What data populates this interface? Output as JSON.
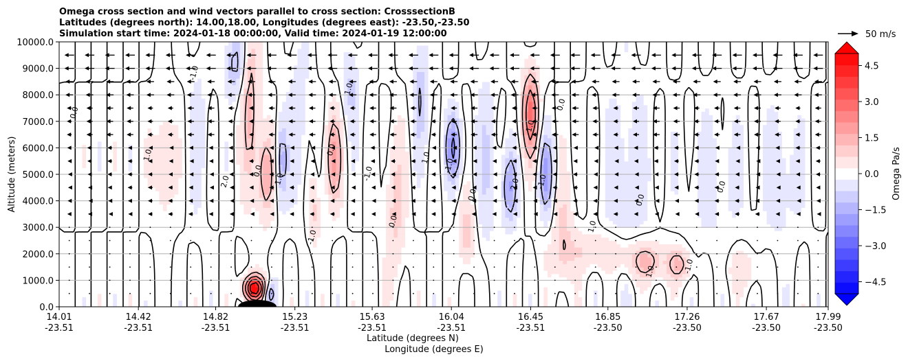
{
  "chart_data": {
    "type": "heatmap",
    "title_lines": [
      "Omega cross section and wind vectors parallel to cross section: CrosssectionB",
      "Latitudes (degrees north): 14.00,18.00, Longitudes (degrees east): -23.50,-23.50",
      "Simulation start time: 2024-01-18 00:00:00, Valid time: 2024-01-19 12:00:00"
    ],
    "ylabel": "Altitude (meters)",
    "xlabel_lines": [
      "Latitude (degrees N)",
      "Longitude (degrees E)"
    ],
    "ylim": [
      0,
      10000
    ],
    "xlim": [
      14.01,
      17.99
    ],
    "grid": "horizontal",
    "y_ticks": [
      0,
      1000,
      2000,
      3000,
      4000,
      5000,
      6000,
      7000,
      8000,
      9000,
      10000
    ],
    "y_tick_labels": [
      "0.0",
      "1000.0",
      "2000.0",
      "3000.0",
      "4000.0",
      "5000.0",
      "6000.0",
      "7000.0",
      "8000.0",
      "9000.0",
      "10000.0"
    ],
    "x_ticks": [
      {
        "lat": "14.01",
        "lon": "-23.51"
      },
      {
        "lat": "14.42",
        "lon": "-23.51"
      },
      {
        "lat": "14.82",
        "lon": "-23.51"
      },
      {
        "lat": "15.23",
        "lon": "-23.51"
      },
      {
        "lat": "15.63",
        "lon": "-23.51"
      },
      {
        "lat": "16.04",
        "lon": "-23.51"
      },
      {
        "lat": "16.45",
        "lon": "-23.51"
      },
      {
        "lat": "16.85",
        "lon": "-23.50"
      },
      {
        "lat": "17.26",
        "lon": "-23.50"
      },
      {
        "lat": "17.67",
        "lon": "-23.50"
      },
      {
        "lat": "17.99",
        "lon": "-23.50"
      }
    ],
    "colorbar": {
      "label": "Omega Pa/s",
      "range": [
        -5,
        5
      ],
      "extend": "both",
      "ticks": [
        4.5,
        3.0,
        1.5,
        0.0,
        -1.5,
        -3.0,
        -4.5
      ],
      "tick_labels": [
        "4.5",
        "3.0",
        "1.5",
        "0.0",
        "−1.5",
        "−3.0",
        "−4.5"
      ],
      "colormap": "bwr",
      "levels": 21
    },
    "quiver_key": {
      "label": "50 m/s"
    },
    "contour_labels": [
      "0.0",
      "1.0",
      "-1.0",
      "2.0",
      "0.0",
      "1.0",
      "-1.0",
      "0.0",
      "1.0",
      "-1.0",
      "0.0",
      "1.0",
      "-1.0",
      "0.0",
      "2.0",
      "1.0",
      "-1.0",
      "0.0",
      "1.0",
      "0.0",
      "1.0",
      "-1.0",
      "0.0"
    ],
    "features": [
      {
        "kind": "band",
        "lat": 14.55,
        "sign": 1,
        "amp": 0.6,
        "width": 0.05,
        "zc": 5500,
        "zw": 2500
      },
      {
        "kind": "band",
        "lat": 14.73,
        "sign": -1,
        "amp": 0.4,
        "width": 0.05,
        "zc": 6500,
        "zw": 3000
      },
      {
        "kind": "band",
        "lat": 14.92,
        "sign": -1,
        "amp": 1.2,
        "width": 0.05,
        "zc": 9200,
        "zw": 1200
      },
      {
        "kind": "band",
        "lat": 15.0,
        "sign": 1,
        "amp": 1.3,
        "width": 0.045,
        "zc": 7500,
        "zw": 3000
      },
      {
        "kind": "band",
        "lat": 15.08,
        "sign": 1,
        "amp": 1.6,
        "width": 0.04,
        "zc": 5000,
        "zw": 1500
      },
      {
        "kind": "band",
        "lat": 15.16,
        "sign": -1,
        "amp": 1.4,
        "width": 0.03,
        "zc": 5500,
        "zw": 1500
      },
      {
        "kind": "band",
        "lat": 15.25,
        "sign": -1,
        "amp": 0.5,
        "width": 0.06,
        "zc": 7000,
        "zw": 3000
      },
      {
        "kind": "band",
        "lat": 15.33,
        "sign": 1,
        "amp": 0.8,
        "width": 0.03,
        "zc": 3600,
        "zw": 1200
      },
      {
        "kind": "band",
        "lat": 15.43,
        "sign": 1,
        "amp": 1.8,
        "width": 0.04,
        "zc": 5600,
        "zw": 1600
      },
      {
        "kind": "band",
        "lat": 15.52,
        "sign": -1,
        "amp": 0.8,
        "width": 0.04,
        "zc": 8200,
        "zw": 1500
      },
      {
        "kind": "band",
        "lat": 15.75,
        "sign": 1,
        "amp": 0.9,
        "width": 0.05,
        "zc": 3800,
        "zw": 2500
      },
      {
        "kind": "band",
        "lat": 15.88,
        "sign": -1,
        "amp": 1.0,
        "width": 0.04,
        "zc": 8000,
        "zw": 2000
      },
      {
        "kind": "band",
        "lat": 16.05,
        "sign": -1,
        "amp": 2.0,
        "width": 0.04,
        "zc": 6000,
        "zw": 1200
      },
      {
        "kind": "band",
        "lat": 16.12,
        "sign": 1,
        "amp": 1.0,
        "width": 0.04,
        "zc": 2800,
        "zw": 1200
      },
      {
        "kind": "band",
        "lat": 16.22,
        "sign": -1,
        "amp": 0.7,
        "width": 0.05,
        "zc": 5500,
        "zw": 3000
      },
      {
        "kind": "band",
        "lat": 16.34,
        "sign": -1,
        "amp": 1.6,
        "width": 0.04,
        "zc": 4500,
        "zw": 1300
      },
      {
        "kind": "band",
        "lat": 16.45,
        "sign": 1,
        "amp": 2.8,
        "width": 0.04,
        "zc": 7300,
        "zw": 1500
      },
      {
        "kind": "band",
        "lat": 16.53,
        "sign": -1,
        "amp": 1.8,
        "width": 0.035,
        "zc": 5000,
        "zw": 1400
      },
      {
        "kind": "band",
        "lat": 16.62,
        "sign": 1,
        "amp": 0.8,
        "width": 0.05,
        "zc": 2800,
        "zw": 2000
      },
      {
        "kind": "band",
        "lat": 16.95,
        "sign": -1,
        "amp": 0.5,
        "width": 0.12,
        "zc": 5000,
        "zw": 3500
      },
      {
        "kind": "blob",
        "lat": 15.02,
        "z": 700,
        "sign": 1,
        "amp": 5.0,
        "width": 0.05,
        "zw": 450
      },
      {
        "kind": "blob",
        "lat": 15.1,
        "z": 500,
        "sign": -1,
        "amp": 1.5,
        "width": 0.03,
        "zw": 400
      },
      {
        "kind": "blob",
        "lat": 16.78,
        "z": 2100,
        "sign": 1,
        "amp": 0.7,
        "width": 0.2,
        "zw": 700
      },
      {
        "kind": "blob",
        "lat": 17.05,
        "z": 1700,
        "sign": 1,
        "amp": 1.3,
        "width": 0.1,
        "zw": 700
      },
      {
        "kind": "blob",
        "lat": 17.22,
        "z": 1600,
        "sign": 1,
        "amp": 1.2,
        "width": 0.06,
        "zw": 600
      },
      {
        "kind": "blob",
        "lat": 17.55,
        "z": 1400,
        "sign": 1,
        "amp": 0.6,
        "width": 0.08,
        "zw": 700
      },
      {
        "kind": "blob",
        "lat": 17.75,
        "z": 5000,
        "sign": -1,
        "amp": 0.5,
        "width": 0.1,
        "zw": 2500
      },
      {
        "kind": "blob",
        "lat": 17.4,
        "z": 4800,
        "sign": -1,
        "amp": 0.4,
        "width": 0.15,
        "zw": 2500
      }
    ]
  }
}
